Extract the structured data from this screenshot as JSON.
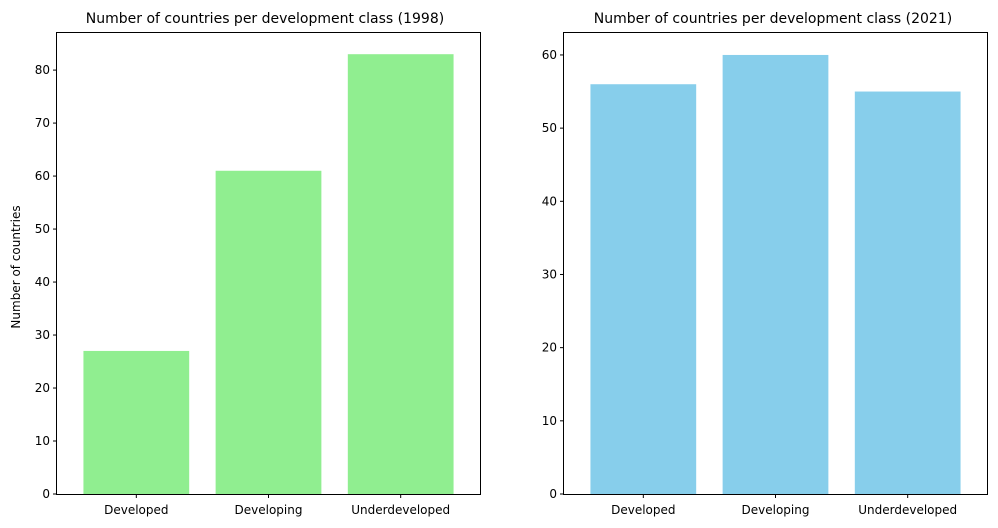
{
  "chart_data": [
    {
      "type": "bar",
      "title": "Number of countries per development class (1998)",
      "xlabel": "",
      "ylabel": "Number of countries",
      "categories": [
        "Developed",
        "Developing",
        "Underdeveloped"
      ],
      "values": [
        27,
        61,
        83
      ],
      "ylim": [
        0,
        87
      ],
      "yticks": [
        0,
        10,
        20,
        30,
        40,
        50,
        60,
        70,
        80
      ],
      "color": "#90ee90",
      "grid": false
    },
    {
      "type": "bar",
      "title": "Number of countries per development class (2021)",
      "xlabel": "",
      "ylabel": "",
      "categories": [
        "Developed",
        "Developing",
        "Underdeveloped"
      ],
      "values": [
        56,
        60,
        55
      ],
      "ylim": [
        0,
        63
      ],
      "yticks": [
        0,
        10,
        20,
        30,
        40,
        50,
        60
      ],
      "color": "#87ceeb",
      "grid": false
    }
  ]
}
